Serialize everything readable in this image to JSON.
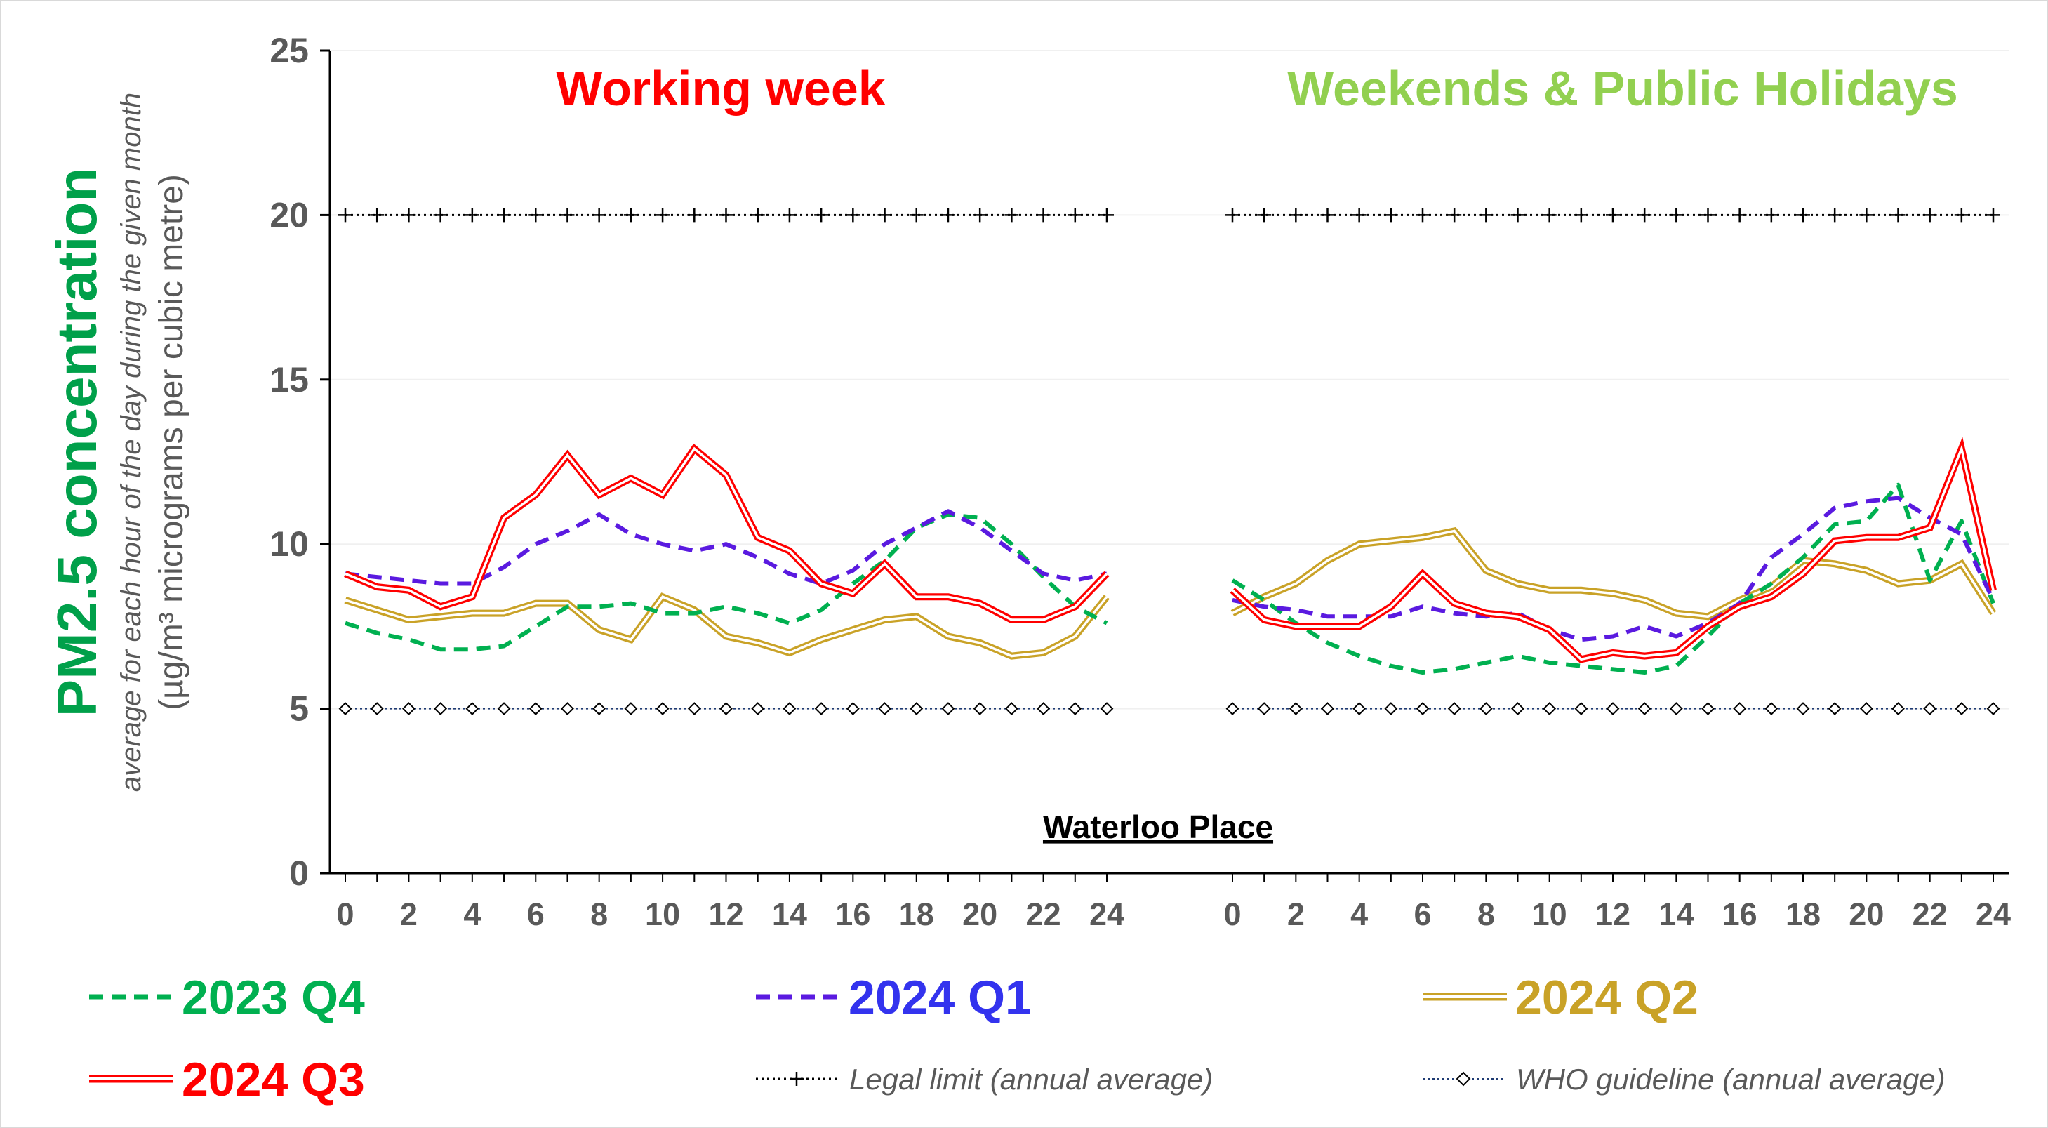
{
  "chart_data": {
    "type": "line",
    "site": "Waterloo Place",
    "y_title": "PM2.5 concentration",
    "y_subtitle": "average for each hour of the day during the given month",
    "y_unit": "(µg/m³ micrograms per cubic metre)",
    "ylim": [
      0,
      25
    ],
    "yticks": [
      0,
      5,
      10,
      15,
      20,
      25
    ],
    "xticks": [
      0,
      2,
      4,
      6,
      8,
      10,
      12,
      14,
      16,
      18,
      20,
      22,
      24
    ],
    "grid": true,
    "legend_position": "bottom",
    "panels": [
      {
        "title": "Working week",
        "title_color": "#ff0000",
        "x": [
          0,
          1,
          2,
          3,
          4,
          5,
          6,
          7,
          8,
          9,
          10,
          11,
          12,
          13,
          14,
          15,
          16,
          17,
          18,
          19,
          20,
          21,
          22,
          23,
          24
        ],
        "series": [
          {
            "name": "2023 Q4",
            "values": [
              7.6,
              7.3,
              7.1,
              6.8,
              6.8,
              6.9,
              7.5,
              8.1,
              8.1,
              8.2,
              7.9,
              7.9,
              8.1,
              7.9,
              7.6,
              8.0,
              8.8,
              9.5,
              10.5,
              10.9,
              10.8,
              10.0,
              9.0,
              8.1,
              7.6
            ]
          },
          {
            "name": "2024 Q1",
            "values": [
              9.1,
              9.0,
              8.9,
              8.8,
              8.8,
              9.3,
              10.0,
              10.4,
              10.9,
              10.3,
              10.0,
              9.8,
              10.0,
              9.6,
              9.1,
              8.8,
              9.2,
              10.0,
              10.5,
              11.0,
              10.5,
              9.8,
              9.1,
              8.9,
              9.1
            ]
          },
          {
            "name": "2024 Q2",
            "values": [
              8.3,
              8.0,
              7.7,
              7.8,
              7.9,
              7.9,
              8.2,
              8.2,
              7.4,
              7.1,
              8.4,
              8.0,
              7.2,
              7.0,
              6.7,
              7.1,
              7.4,
              7.7,
              7.8,
              7.2,
              7.0,
              6.6,
              6.7,
              7.2,
              8.4
            ]
          },
          {
            "name": "2024 Q3",
            "values": [
              9.1,
              8.7,
              8.6,
              8.1,
              8.4,
              10.8,
              11.5,
              12.7,
              11.5,
              12.0,
              11.5,
              12.9,
              12.1,
              10.2,
              9.8,
              8.8,
              8.5,
              9.4,
              8.4,
              8.4,
              8.2,
              7.7,
              7.7,
              8.1,
              9.1
            ]
          }
        ]
      },
      {
        "title": "Weekends & Public Holidays",
        "title_color": "#92d050",
        "x": [
          0,
          1,
          2,
          3,
          4,
          5,
          6,
          7,
          8,
          9,
          10,
          11,
          12,
          13,
          14,
          15,
          16,
          17,
          18,
          19,
          20,
          21,
          22,
          23,
          24
        ],
        "series": [
          {
            "name": "2023 Q4",
            "values": [
              8.9,
              8.3,
              7.6,
              7.0,
              6.6,
              6.3,
              6.1,
              6.2,
              6.4,
              6.6,
              6.4,
              6.3,
              6.2,
              6.1,
              6.3,
              7.2,
              8.2,
              8.8,
              9.6,
              10.6,
              10.7,
              11.8,
              8.9,
              10.7,
              8.2
            ]
          },
          {
            "name": "2024 Q1",
            "values": [
              8.3,
              8.1,
              8.0,
              7.8,
              7.8,
              7.8,
              8.1,
              7.9,
              7.8,
              7.9,
              7.4,
              7.1,
              7.2,
              7.5,
              7.2,
              7.6,
              8.2,
              9.6,
              10.3,
              11.1,
              11.3,
              11.4,
              10.8,
              10.3,
              8.3
            ]
          },
          {
            "name": "2024 Q2",
            "values": [
              7.9,
              8.4,
              8.8,
              9.5,
              10.0,
              10.1,
              10.2,
              10.4,
              9.2,
              8.8,
              8.6,
              8.6,
              8.5,
              8.3,
              7.9,
              7.8,
              8.3,
              8.7,
              9.5,
              9.4,
              9.2,
              8.8,
              8.9,
              9.4,
              7.9
            ]
          },
          {
            "name": "2024 Q3",
            "values": [
              8.6,
              7.7,
              7.5,
              7.5,
              7.5,
              8.1,
              9.1,
              8.2,
              7.9,
              7.8,
              7.4,
              6.5,
              6.7,
              6.6,
              6.7,
              7.5,
              8.1,
              8.4,
              9.1,
              10.1,
              10.2,
              10.2,
              10.5,
              12.9,
              8.6
            ]
          }
        ]
      }
    ],
    "reference_lines": [
      {
        "name": "Legal limit (annual average)",
        "value": 20
      },
      {
        "name": "WHO guideline (annual average)",
        "value": 5
      }
    ]
  },
  "legend": {
    "items": [
      {
        "label": "2023 Q4",
        "color": "#00b050",
        "style": "dashed"
      },
      {
        "label": "2024 Q1",
        "color": "#3d2ee8",
        "style": "dashed"
      },
      {
        "label": "2024 Q2",
        "color": "#c9a227",
        "style": "double"
      },
      {
        "label": "2024 Q3",
        "color": "#ff0000",
        "style": "double"
      }
    ],
    "legal_label": "Legal limit (annual average)",
    "who_label": "WHO guideline (annual average)"
  },
  "colors": {
    "q4": "#00b050",
    "q1": "#5a1ae0",
    "q2": "#c9a227",
    "q3": "#ff0000",
    "q1_label": "#3333ee"
  }
}
